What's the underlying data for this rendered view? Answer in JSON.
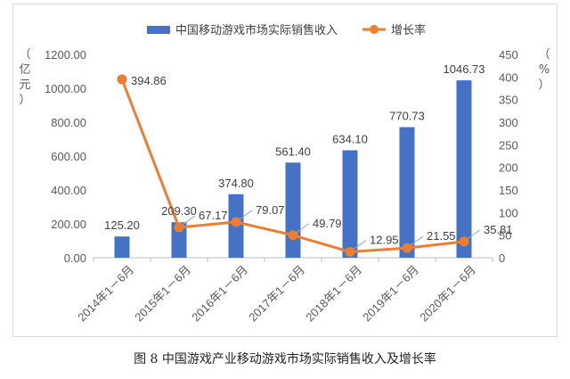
{
  "caption": "图 8 中国游戏产业移动游戏市场实际销售收入及增长率",
  "colors": {
    "bar": "#4472C4",
    "line": "#ED7D31",
    "grid": "#d9d9d9",
    "axis": "#bfbfbf"
  },
  "chart_data": {
    "type": "bar",
    "title": "",
    "categories": [
      "2014年1－6月",
      "2015年1－6月",
      "2016年1－6月",
      "2017年1－6月",
      "2018年1－6月",
      "2019年1－6月",
      "2020年1－6月"
    ],
    "series": [
      {
        "name": "中国移动游戏市场实际销售收入",
        "type": "bar",
        "axis": "left",
        "values": [
          125.2,
          209.3,
          374.8,
          561.4,
          634.1,
          770.73,
          1046.73
        ],
        "labels": [
          "125.20",
          "209.30",
          "374.80",
          "561.40",
          "634.10",
          "770.73",
          "1046.73"
        ]
      },
      {
        "name": "增长率",
        "type": "line",
        "axis": "right",
        "values": [
          394.86,
          67.17,
          79.07,
          49.79,
          12.95,
          21.55,
          35.81
        ],
        "labels": [
          "394.86",
          "67.17",
          "79.07",
          "49.79",
          "12.95",
          "21.55",
          "35.81"
        ]
      }
    ],
    "ylabel_left": "（亿元）",
    "ylabel_right": "（%）",
    "ylim_left": [
      0,
      1200
    ],
    "ylim_right": [
      0,
      450
    ],
    "yticks_left": [
      "0.00",
      "200.00",
      "400.00",
      "600.00",
      "800.00",
      "1000.00",
      "1200.00"
    ],
    "yticks_right": [
      "0",
      "50",
      "100",
      "150",
      "200",
      "250",
      "300",
      "350",
      "400",
      "450"
    ],
    "legend_position": "top",
    "grid": false
  }
}
